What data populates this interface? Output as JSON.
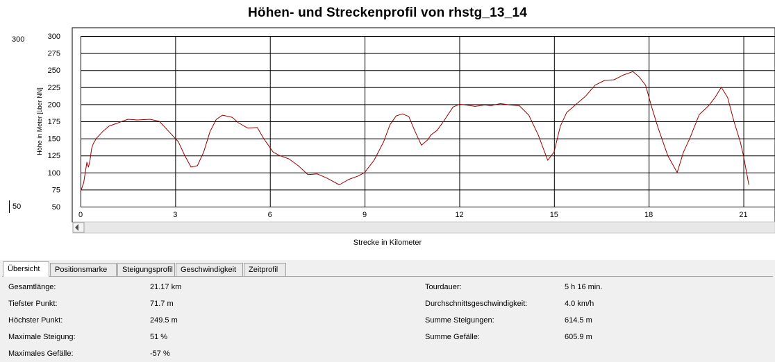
{
  "window": {
    "title": "Höhen- und Streckenprofil von rhstg_13_14"
  },
  "controls": {
    "ymax_value": "300",
    "ymin_value": "50"
  },
  "chart_data": {
    "type": "line",
    "title": "Höhen- und Streckenprofil von rhstg_13_14",
    "xlabel": "Strecke in Kilometer",
    "ylabel": "Höhe in Meter [über NN]",
    "xlim": [
      0,
      22
    ],
    "ylim": [
      50,
      300
    ],
    "xticks": [
      0,
      3,
      6,
      9,
      12,
      15,
      18,
      21
    ],
    "yticks": [
      50,
      75,
      100,
      125,
      150,
      175,
      200,
      225,
      250,
      275,
      300
    ],
    "grid": true,
    "series": [
      {
        "color": "#990000",
        "x": [
          0,
          0.1,
          0.2,
          0.25,
          0.3,
          0.35,
          0.4,
          0.5,
          0.7,
          0.9,
          1.2,
          1.5,
          1.8,
          2.2,
          2.5,
          2.7,
          2.9,
          3.1,
          3.3,
          3.5,
          3.7,
          3.9,
          4.1,
          4.3,
          4.5,
          4.8,
          5.0,
          5.3,
          5.6,
          5.8,
          6.1,
          6.3,
          6.6,
          6.9,
          7.2,
          7.5,
          7.8,
          8.2,
          8.5,
          8.8,
          9.0,
          9.3,
          9.6,
          9.8,
          10.0,
          10.2,
          10.4,
          10.6,
          10.8,
          11.0,
          11.1,
          11.3,
          11.5,
          11.8,
          12.0,
          12.2,
          12.5,
          12.8,
          13.0,
          13.3,
          13.6,
          13.9,
          14.2,
          14.5,
          14.8,
          15.0,
          15.2,
          15.4,
          15.7,
          16.0,
          16.3,
          16.6,
          16.9,
          17.2,
          17.5,
          17.7,
          17.9,
          18.1,
          18.3,
          18.6,
          18.9,
          19.1,
          19.3,
          19.6,
          19.9,
          20.1,
          20.3,
          20.5,
          20.7,
          20.9,
          21.0,
          21.1,
          21.17
        ],
        "y": [
          72,
          85,
          115,
          108,
          118,
          135,
          142,
          150,
          160,
          168,
          173,
          178,
          177,
          178,
          175,
          165,
          155,
          145,
          125,
          108,
          110,
          130,
          160,
          178,
          184,
          181,
          173,
          165,
          166,
          150,
          130,
          125,
          120,
          110,
          97,
          98,
          92,
          82,
          90,
          95,
          100,
          118,
          145,
          170,
          183,
          186,
          182,
          160,
          140,
          148,
          155,
          162,
          175,
          196,
          200,
          199,
          197,
          199,
          198,
          201,
          199,
          198,
          184,
          155,
          118,
          130,
          168,
          188,
          200,
          212,
          228,
          235,
          236,
          243,
          248,
          240,
          228,
          195,
          165,
          125,
          100,
          130,
          150,
          185,
          198,
          210,
          225,
          210,
          175,
          145,
          125,
          100,
          82
        ]
      }
    ]
  },
  "tabs": [
    {
      "label": "Übersicht",
      "active": true
    },
    {
      "label": "Positionsmarke",
      "active": false
    },
    {
      "label": "Steigungsprofil",
      "active": false
    },
    {
      "label": "Geschwindigkeit",
      "active": false
    },
    {
      "label": "Zeitprofil",
      "active": false
    }
  ],
  "summary": {
    "left": [
      {
        "label": "Gesamtlänge:",
        "value": "21.17 km"
      },
      {
        "label": "Tiefster Punkt:",
        "value": "71.7 m"
      },
      {
        "label": "Höchster Punkt:",
        "value": "249.5 m"
      },
      {
        "label": "Maximale Steigung:",
        "value": "51 %"
      },
      {
        "label": "Maximales Gefälle:",
        "value": "-57 %"
      }
    ],
    "right": [
      {
        "label": "Tourdauer:",
        "value": "5 h 16 min."
      },
      {
        "label": "Durchschnittsgeschwindigkeit:",
        "value": "4.0 km/h"
      },
      {
        "label": "Summe Steigungen:",
        "value": "614.5 m"
      },
      {
        "label": "Summe Gefälle:",
        "value": "605.9 m"
      }
    ]
  }
}
